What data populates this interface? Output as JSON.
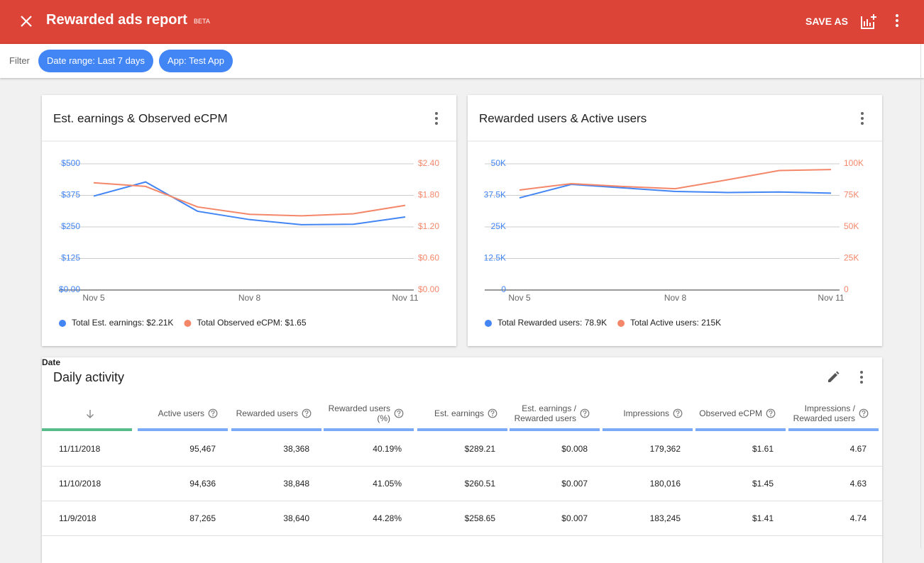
{
  "header": {
    "title": "Rewarded ads report",
    "badge": "BETA",
    "action": "SAVE AS"
  },
  "filter": {
    "label": "Filter",
    "chips": [
      "Date range: Last 7 days",
      "App: Test App"
    ]
  },
  "chart_data": [
    {
      "type": "line",
      "title": "Est. earnings & Observed eCPM",
      "categories": [
        "Nov 5",
        null,
        null,
        "Nov 8",
        null,
        null,
        "Nov 11"
      ],
      "series": [
        {
          "name": "Total Est. earnings: $2.21K",
          "color": "#4285f4",
          "values": [
            372,
            428,
            312,
            279,
            258.65,
            260.51,
            289.21
          ]
        },
        {
          "name": "Total Observed eCPM: $1.65",
          "color": "#f4876a",
          "axis": "y2",
          "values": [
            2.04,
            1.97,
            1.58,
            1.44,
            1.41,
            1.45,
            1.61
          ]
        }
      ],
      "ylim": [
        0,
        500
      ],
      "yticks": [
        {
          "value": 0,
          "label": "$0.00"
        },
        {
          "value": 125,
          "label": "$125"
        },
        {
          "value": 250,
          "label": "$250"
        },
        {
          "value": 375,
          "label": "$375"
        },
        {
          "value": 500,
          "label": "$500"
        }
      ],
      "y2lim": [
        0,
        2.4
      ],
      "y2ticks": [
        {
          "value": 0,
          "label": "$0.00"
        },
        {
          "value": 0.6,
          "label": "$0.60"
        },
        {
          "value": 1.2,
          "label": "$1.20"
        },
        {
          "value": 1.8,
          "label": "$1.80"
        },
        {
          "value": 2.4,
          "label": "$2.40"
        }
      ],
      "grid": true
    },
    {
      "type": "line",
      "title": "Rewarded users & Active users",
      "categories": [
        "Nov 5",
        null,
        null,
        "Nov 8",
        null,
        null,
        "Nov 11"
      ],
      "series": [
        {
          "name": "Total Rewarded users: 78.9K",
          "color": "#4285f4",
          "values": [
            36500,
            41850,
            40450,
            39050,
            38640,
            38848,
            38368
          ]
        },
        {
          "name": "Total Active users: 215K",
          "color": "#f4876a",
          "axis": "y2",
          "values": [
            79200,
            84300,
            82000,
            80300,
            87265,
            94636,
            95467
          ]
        }
      ],
      "ylim": [
        0,
        50000
      ],
      "yticks": [
        0,
        {
          "value": 12500,
          "label": "12.5K"
        },
        {
          "value": 25000,
          "label": "25K"
        },
        {
          "value": 37500,
          "label": "37.5K"
        },
        {
          "value": 50000,
          "label": "50K"
        }
      ],
      "y2lim": [
        0,
        100000
      ],
      "y2ticks": [
        0,
        {
          "value": 25000,
          "label": "25K"
        },
        {
          "value": 50000,
          "label": "50K"
        },
        {
          "value": 75000,
          "label": "75K"
        },
        {
          "value": 100000,
          "label": "100K"
        }
      ],
      "grid": true
    }
  ],
  "table": {
    "title": "Daily activity",
    "columns": [
      "Date",
      "Active users",
      "Rewarded users",
      "Rewarded users (%)",
      "Est. earnings",
      "Est. earnings / Rewarded users",
      "Impressions",
      "Observed eCPM",
      "Impressions / Rewarded users"
    ],
    "rows": [
      [
        "11/11/2018",
        "95,467",
        "38,368",
        "40.19%",
        "$289.21",
        "$0.008",
        "179,362",
        "$1.61",
        "4.67"
      ],
      [
        "11/10/2018",
        "94,636",
        "38,848",
        "41.05%",
        "$260.51",
        "$0.007",
        "180,016",
        "$1.45",
        "4.63"
      ],
      [
        "11/9/2018",
        "87,265",
        "38,640",
        "44.28%",
        "$258.65",
        "$0.007",
        "183,245",
        "$1.41",
        "4.74"
      ]
    ]
  }
}
